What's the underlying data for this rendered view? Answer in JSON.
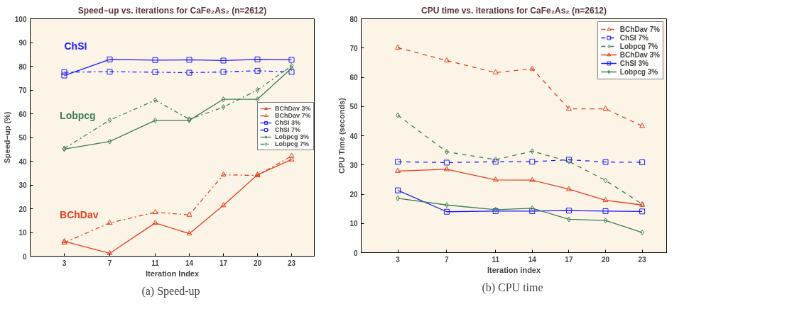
{
  "chart_data": [
    {
      "type": "line",
      "title": "Speed−up vs. iterations for CaFe₂As₂ (n=2612)",
      "xlabel": "Iteration Index",
      "ylabel": "Speed−up (%)",
      "x": [
        3,
        7,
        11,
        14,
        17,
        20,
        23
      ],
      "xlim": [
        0,
        25
      ],
      "xticks": [
        3,
        7,
        11,
        14,
        17,
        20,
        23
      ],
      "ylim": [
        0,
        100
      ],
      "yticks": [
        0,
        10,
        20,
        30,
        40,
        50,
        60,
        70,
        80,
        90,
        100
      ],
      "grid": false,
      "legend": "right",
      "series": [
        {
          "name": "BChDav 3%",
          "color": "#e2401c",
          "marker": "triangle",
          "line_style": "solid",
          "values": [
            6.2,
            1.2,
            14.0,
            9.5,
            21.4,
            34.3,
            40.7
          ]
        },
        {
          "name": "BChDav 7%",
          "color": "#e2401c",
          "marker": "triangle",
          "line_style": "dashdot",
          "values": [
            5.7,
            14.0,
            18.5,
            17.4,
            34.3,
            34.0,
            42.2
          ]
        },
        {
          "name": "ChSI 3%",
          "color": "#1a1aff",
          "marker": "square",
          "line_style": "solid",
          "values": [
            76.1,
            82.9,
            82.6,
            82.7,
            82.4,
            82.9,
            82.7
          ]
        },
        {
          "name": "ChSI 7%",
          "color": "#1a1aff",
          "marker": "square",
          "line_style": "dashdot",
          "values": [
            77.5,
            77.7,
            77.5,
            77.3,
            77.6,
            78.1,
            77.6
          ]
        },
        {
          "name": "Lobpcg 3%",
          "color": "#3e7d5a",
          "marker": "diamond",
          "line_style": "solid",
          "values": [
            45.1,
            48.3,
            57.2,
            57.2,
            66.1,
            66.1,
            79.2
          ]
        },
        {
          "name": "Lobpcg 7%",
          "color": "#3e7d5a",
          "marker": "diamond",
          "line_style": "dashdot",
          "values": [
            45.4,
            57.3,
            65.7,
            57.7,
            62.8,
            70.0,
            80.2
          ]
        }
      ],
      "annotations": [
        "ChSI",
        "Lobpcg",
        "BChDav",
        "(a)  Speed-up"
      ]
    },
    {
      "type": "line",
      "title": "CPU time vs. iterations for CaFe₂As₂ (n=2612)",
      "xlabel": "Iteration index",
      "ylabel": "CPU Time (seconds)",
      "x": [
        3,
        7,
        11,
        14,
        17,
        20,
        23
      ],
      "xlim": [
        0,
        25
      ],
      "xticks": [
        3,
        7,
        11,
        14,
        17,
        20,
        23
      ],
      "ylim": [
        0,
        80
      ],
      "yticks": [
        0,
        10,
        20,
        30,
        40,
        50,
        60,
        70,
        80
      ],
      "grid": false,
      "legend": "top right",
      "series": [
        {
          "name": "BChDav 7%",
          "color": "#e2401c",
          "marker": "triangle",
          "line_style": "dashed",
          "values": [
            70.1,
            65.7,
            61.6,
            62.9,
            49.2,
            49.2,
            43.3
          ]
        },
        {
          "name": "ChSI 7%",
          "color": "#1a1aff",
          "marker": "square",
          "line_style": "dashed",
          "values": [
            31.1,
            30.8,
            31.1,
            31.1,
            31.8,
            31.0,
            30.9
          ]
        },
        {
          "name": "Lobpcg 7%",
          "color": "#3e7d5a",
          "marker": "diamond",
          "line_style": "dashed",
          "values": [
            47.0,
            34.5,
            31.8,
            34.7,
            31.2,
            24.7,
            16.6
          ]
        },
        {
          "name": "BChDav 3%",
          "color": "#e2401c",
          "marker": "triangle",
          "line_style": "solid",
          "values": [
            27.9,
            28.5,
            24.9,
            24.8,
            21.7,
            17.9,
            16.3
          ]
        },
        {
          "name": "ChSI 3%",
          "color": "#1a1aff",
          "marker": "square",
          "line_style": "solid",
          "values": [
            21.3,
            14.0,
            14.2,
            14.2,
            14.4,
            14.2,
            14.1
          ]
        },
        {
          "name": "Lobpcg 3%",
          "color": "#3e7d5a",
          "marker": "diamond",
          "line_style": "solid",
          "values": [
            18.6,
            16.3,
            14.7,
            15.2,
            11.4,
            11.0,
            6.9
          ]
        }
      ],
      "annotations": [
        "(b)  CPU time"
      ]
    }
  ]
}
